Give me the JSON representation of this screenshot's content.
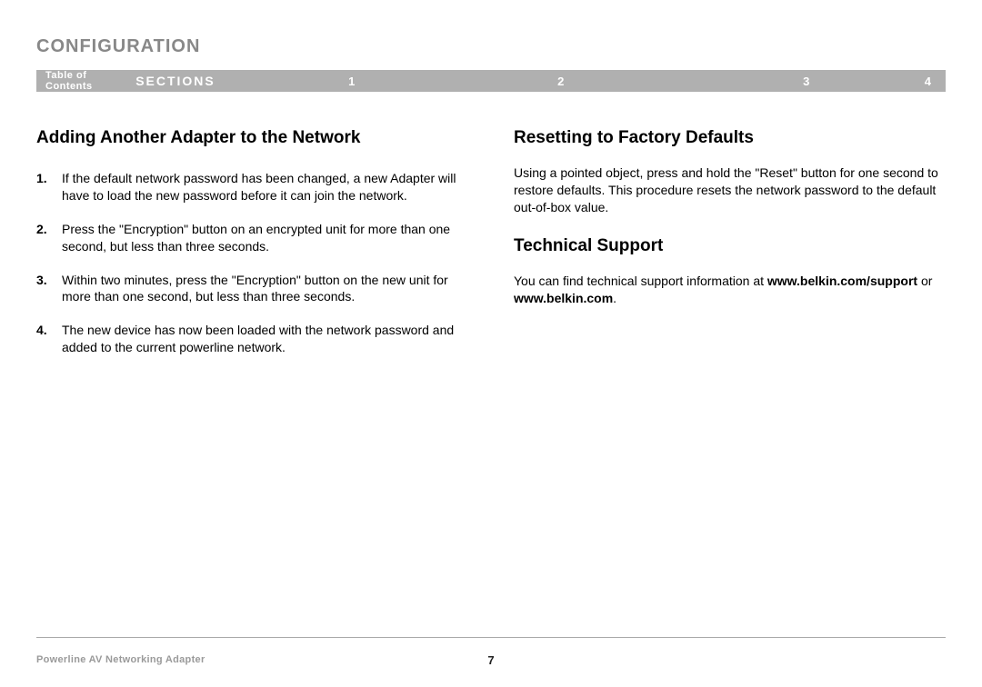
{
  "header": {
    "title": "CONFIGURATION"
  },
  "nav": {
    "toc": "Table of Contents",
    "sections_label": "SECTIONS",
    "items": [
      "1",
      "2",
      "3",
      "4"
    ]
  },
  "left": {
    "heading": "Adding Another Adapter to the Network",
    "steps": [
      "If the default network password has been changed, a new Adapter will have to load the new password before it can join the network.",
      "Press the \"Encryption\" button on an encrypted unit for more than one second, but less than three seconds.",
      "Within two minutes, press the \"Encryption\" button on the new unit for more than one second, but less than three seconds.",
      "The new device has now been loaded with the network password and added to the current powerline network."
    ]
  },
  "right": {
    "reset_heading": "Resetting to Factory Defaults",
    "reset_para": "Using a pointed object, press and hold the \"Reset\" button for one second to restore defaults. This procedure resets the network password to the default out-of-box value.",
    "support_heading": "Technical Support",
    "support_pre": "You can find technical support information at ",
    "support_url1": "www.belkin.com/support",
    "support_mid": " or ",
    "support_url2": "www.belkin.com",
    "support_post": "."
  },
  "footer": {
    "doc_name": "Powerline AV Networking Adapter",
    "page_number": "7"
  },
  "colors": {
    "title_gray": "#888888",
    "navbar_bg": "#b0b0b0",
    "navbar_text": "#ffffff",
    "body_text": "#000000",
    "footer_gray": "#9a9a9a",
    "rule": "#aaaaaa"
  },
  "typography": {
    "title_size_pt": 15,
    "heading_size_pt": 14,
    "body_size_pt": 10.5,
    "nav_size_pt": 9
  }
}
